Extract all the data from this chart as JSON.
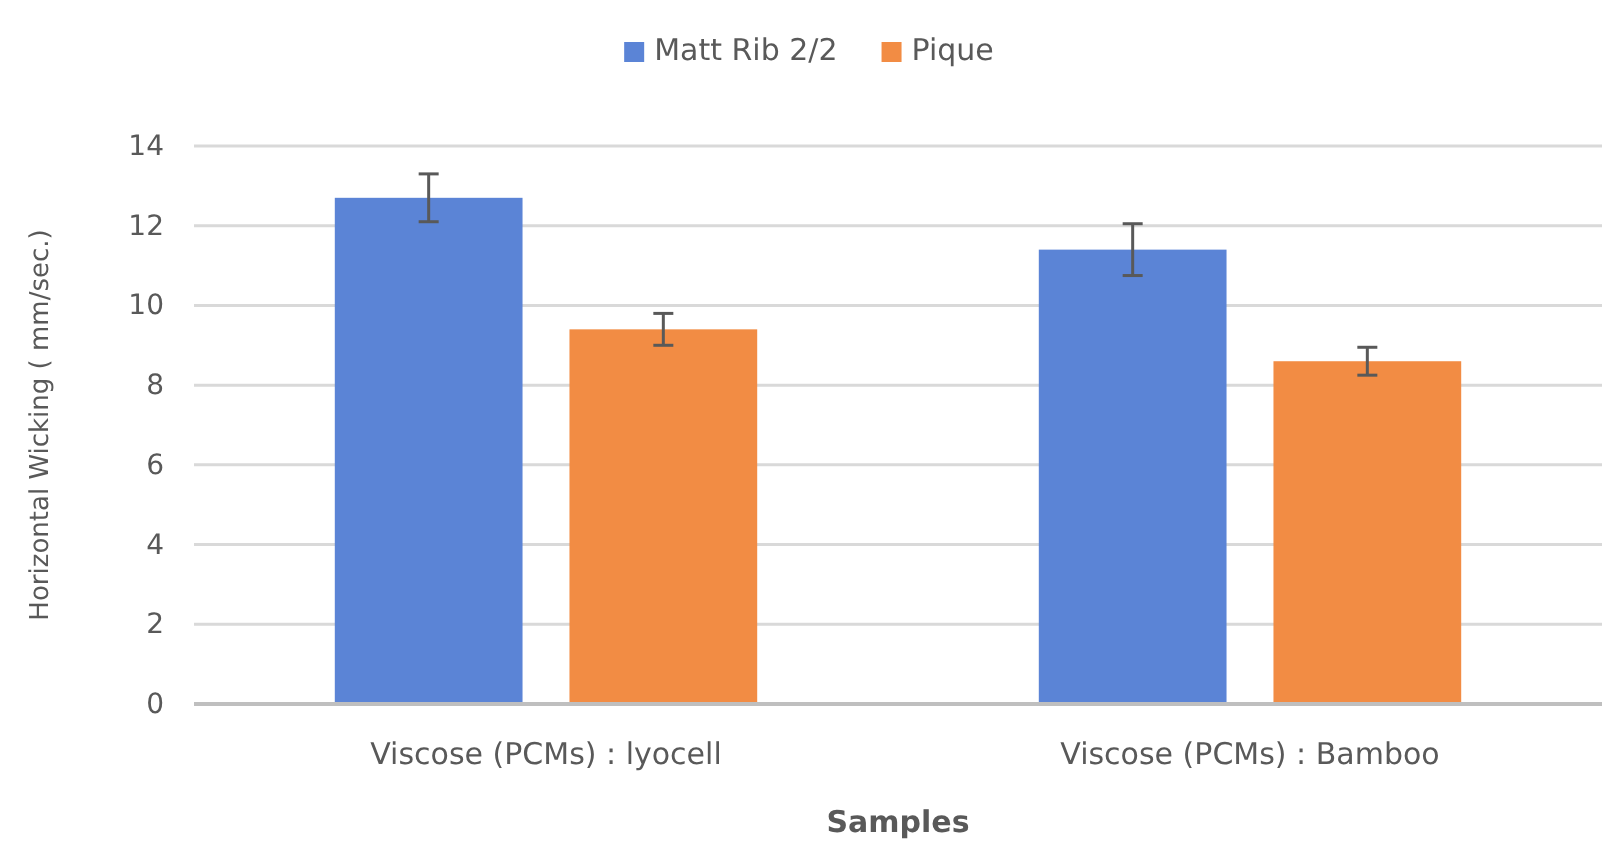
{
  "chart_data": {
    "type": "bar",
    "xlabel": "Samples",
    "ylabel": "Horizontal Wicking ( mm/sec.)",
    "categories": [
      "Viscose (PCMs) : lyocell",
      "Viscose (PCMs) : Bamboo"
    ],
    "series": [
      {
        "name": "Matt Rib 2/2",
        "color": "#5b84d6",
        "values": [
          12.7,
          11.4
        ],
        "errors": [
          0.6,
          0.65
        ]
      },
      {
        "name": "Pique",
        "color": "#f28c44",
        "values": [
          9.4,
          8.6
        ],
        "errors": [
          0.4,
          0.35
        ]
      }
    ],
    "ylim": [
      0,
      14
    ],
    "yticks": [
      0,
      2,
      4,
      6,
      8,
      10,
      12,
      14
    ],
    "grid": "y",
    "legend": "top"
  }
}
